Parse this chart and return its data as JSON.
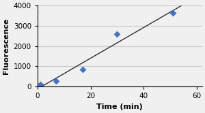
{
  "xlabel": "Time (min)",
  "ylabel": "Fluorescence",
  "x_data": [
    1,
    7,
    17,
    30,
    51
  ],
  "y_data": [
    120,
    280,
    850,
    2600,
    3620
  ],
  "marker_color": "#4472C4",
  "marker": "D",
  "marker_size": 5,
  "line_color": "#1a1a1a",
  "xlim": [
    0,
    62
  ],
  "ylim": [
    0,
    4000
  ],
  "xticks": [
    0,
    20,
    40,
    60
  ],
  "yticks": [
    0,
    1000,
    2000,
    3000,
    4000
  ],
  "grid_color": "#c8c8c8",
  "background_color": "#f0f0f0",
  "title_fontsize": 10,
  "axis_label_fontsize": 8,
  "tick_fontsize": 7.5
}
